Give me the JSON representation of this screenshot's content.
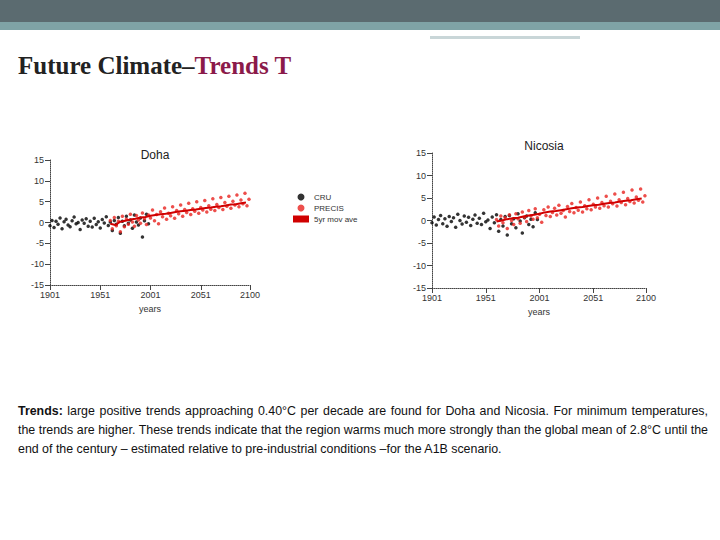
{
  "slide": {
    "title_parts": [
      "Future Climate–",
      "Trends T"
    ],
    "caption_lead": "Trends:",
    "caption": "large positive trends approaching 0.40°C per decade are found for Doha and Nicosia. For minimum temperatures, the trends are higher. These trends indicate that the region warms much more strongly than the global mean of 2.8°C until the end of the century – estimated relative to pre-industrial conditions –for the A1B scenario."
  },
  "chart_data": [
    {
      "type": "scatter",
      "title": "Doha",
      "x_label": "years",
      "xlim": [
        1901,
        2100
      ],
      "xticks": [
        1901,
        1951,
        2001,
        2051,
        2100
      ],
      "ylim": [
        -15,
        15
      ],
      "yticks": [
        -15,
        -10,
        -5,
        0,
        5,
        10,
        15
      ],
      "grid": false,
      "legend": "right",
      "series": [
        {
          "name": "CRU",
          "type": "scatter",
          "marker": "circle",
          "color": "#000000",
          "x": [
            1901,
            1903,
            1905,
            1907,
            1909,
            1911,
            1913,
            1915,
            1917,
            1919,
            1921,
            1923,
            1925,
            1927,
            1929,
            1931,
            1933,
            1935,
            1937,
            1939,
            1941,
            1943,
            1945,
            1947,
            1949,
            1951,
            1953,
            1955,
            1957,
            1959,
            1961,
            1963,
            1965,
            1967,
            1969,
            1971,
            1973,
            1975,
            1977,
            1979,
            1981,
            1983,
            1985,
            1987,
            1989,
            1991,
            1993,
            1995,
            1997,
            1999
          ],
          "values": [
            -0.8,
            0.5,
            -1.2,
            0.3,
            -0.4,
            1.1,
            -1.5,
            0.2,
            0.8,
            -0.6,
            -1.0,
            0.4,
            1.3,
            -0.3,
            0.0,
            -1.7,
            0.6,
            -0.2,
            0.9,
            -0.9,
            0.3,
            -1.1,
            1.0,
            -0.5,
            0.2,
            -1.3,
            0.7,
            -0.1,
            1.4,
            -0.7,
            0.1,
            -1.9,
            0.5,
            -0.4,
            1.2,
            -2.6,
            0.3,
            -0.8,
            1.5,
            -0.2,
            0.6,
            -1.4,
            1.8,
            0.1,
            -0.6,
            1.1,
            -3.5,
            0.4,
            2.0,
            -0.3
          ]
        },
        {
          "name": "PRECIS",
          "type": "scatter",
          "marker": "circle",
          "color": "#e8231f",
          "x": [
            1961,
            1963,
            1965,
            1967,
            1969,
            1971,
            1973,
            1975,
            1977,
            1979,
            1981,
            1983,
            1985,
            1987,
            1989,
            1991,
            1993,
            1995,
            1997,
            1999,
            2001,
            2003,
            2005,
            2007,
            2009,
            2011,
            2013,
            2015,
            2017,
            2019,
            2021,
            2023,
            2025,
            2027,
            2029,
            2031,
            2033,
            2035,
            2037,
            2039,
            2041,
            2043,
            2045,
            2047,
            2049,
            2051,
            2053,
            2055,
            2057,
            2059,
            2061,
            2063,
            2065,
            2067,
            2069,
            2071,
            2073,
            2075,
            2077,
            2079,
            2081,
            2083,
            2085,
            2087,
            2089,
            2091,
            2093,
            2095,
            2097,
            2099
          ],
          "values": [
            0.5,
            -1.5,
            1.2,
            -0.8,
            0.3,
            -2.2,
            1.5,
            -1.0,
            0.8,
            -0.4,
            2.0,
            0.1,
            -0.9,
            1.7,
            0.6,
            -0.2,
            2.3,
            0.9,
            -0.5,
            1.8,
            1.1,
            3.0,
            0.4,
            1.9,
            -0.3,
            2.6,
            1.4,
            3.5,
            0.8,
            2.2,
            1.6,
            3.8,
            1.0,
            2.9,
            2.1,
            4.2,
            1.5,
            3.1,
            2.4,
            4.6,
            1.9,
            3.3,
            2.7,
            5.0,
            2.2,
            3.6,
            3.0,
            5.3,
            2.5,
            4.0,
            3.2,
            5.7,
            2.9,
            4.3,
            3.6,
            6.0,
            3.1,
            4.8,
            3.9,
            6.3,
            3.4,
            5.1,
            4.2,
            6.6,
            3.8,
            5.4,
            4.5,
            7.0,
            4.0,
            5.6
          ]
        },
        {
          "name": "5yr mov ave",
          "type": "line",
          "line_style": "solid",
          "color": "#d00000",
          "x": [
            1961,
            1966,
            1971,
            1976,
            1981,
            1986,
            1991,
            1996,
            2001,
            2006,
            2011,
            2016,
            2021,
            2026,
            2031,
            2036,
            2041,
            2046,
            2051,
            2056,
            2061,
            2066,
            2071,
            2076,
            2081,
            2086,
            2091,
            2096
          ],
          "values": [
            -0.3,
            -0.6,
            0.2,
            0.4,
            0.7,
            0.9,
            1.2,
            1.3,
            1.6,
            1.8,
            2.0,
            2.1,
            2.3,
            2.5,
            2.7,
            2.8,
            3.0,
            3.1,
            3.3,
            3.5,
            3.6,
            3.8,
            3.9,
            4.1,
            4.3,
            4.4,
            4.6,
            4.8
          ]
        }
      ]
    },
    {
      "type": "scatter",
      "title": "Nicosia",
      "x_label": "years",
      "xlim": [
        1901,
        2100
      ],
      "xticks": [
        1901,
        1951,
        2001,
        2051,
        2100
      ],
      "ylim": [
        -15,
        15
      ],
      "yticks": [
        -15,
        -10,
        -5,
        0,
        5,
        10,
        15
      ],
      "grid": false,
      "series": [
        {
          "name": "CRU",
          "type": "scatter",
          "marker": "circle",
          "color": "#000000",
          "x": [
            1901,
            1903,
            1905,
            1907,
            1909,
            1911,
            1913,
            1915,
            1917,
            1919,
            1921,
            1923,
            1925,
            1927,
            1929,
            1931,
            1933,
            1935,
            1937,
            1939,
            1941,
            1943,
            1945,
            1947,
            1949,
            1951,
            1953,
            1955,
            1957,
            1959,
            1961,
            1963,
            1965,
            1967,
            1969,
            1971,
            1973,
            1975,
            1977,
            1979,
            1981,
            1983,
            1985,
            1987,
            1989,
            1991,
            1993,
            1995,
            1997,
            1999
          ],
          "values": [
            -0.5,
            0.8,
            -1.0,
            0.2,
            1.1,
            -0.7,
            0.4,
            -1.3,
            0.9,
            -0.2,
            0.6,
            -1.5,
            1.4,
            0.0,
            -0.8,
            1.0,
            -0.4,
            0.7,
            -1.1,
            0.3,
            1.2,
            -0.6,
            0.5,
            -0.9,
            1.6,
            -0.3,
            0.1,
            -1.8,
            0.8,
            -0.5,
            1.3,
            -2.4,
            0.2,
            -1.2,
            0.9,
            -3.2,
            1.1,
            -0.7,
            0.4,
            -1.6,
            1.5,
            -0.1,
            -2.8,
            0.6,
            1.0,
            -0.9,
            0.3,
            -1.4,
            1.7,
            0.2
          ]
        },
        {
          "name": "PRECIS",
          "type": "scatter",
          "marker": "circle",
          "color": "#e8231f",
          "x": [
            1961,
            1963,
            1965,
            1967,
            1969,
            1971,
            1973,
            1975,
            1977,
            1979,
            1981,
            1983,
            1985,
            1987,
            1989,
            1991,
            1993,
            1995,
            1997,
            1999,
            2001,
            2003,
            2005,
            2007,
            2009,
            2011,
            2013,
            2015,
            2017,
            2019,
            2021,
            2023,
            2025,
            2027,
            2029,
            2031,
            2033,
            2035,
            2037,
            2039,
            2041,
            2043,
            2045,
            2047,
            2049,
            2051,
            2053,
            2055,
            2057,
            2059,
            2061,
            2063,
            2065,
            2067,
            2069,
            2071,
            2073,
            2075,
            2077,
            2079,
            2081,
            2083,
            2085,
            2087,
            2089,
            2091,
            2093,
            2095,
            2097,
            2099
          ],
          "values": [
            0.2,
            -1.2,
            1.0,
            -0.5,
            0.6,
            -1.8,
            1.3,
            0.0,
            -0.9,
            1.5,
            0.4,
            -0.6,
            1.9,
            0.7,
            -0.2,
            2.2,
            1.0,
            0.3,
            2.6,
            0.6,
            1.4,
            -0.4,
            2.4,
            1.1,
            3.0,
            0.9,
            1.8,
            2.7,
            1.2,
            3.4,
            1.6,
            2.2,
            0.8,
            3.1,
            2.0,
            3.8,
            1.7,
            2.9,
            2.3,
            4.1,
            1.9,
            3.3,
            2.6,
            4.6,
            2.4,
            3.6,
            3.0,
            5.0,
            2.7,
            4.0,
            3.3,
            5.4,
            3.0,
            4.3,
            3.7,
            5.9,
            3.2,
            4.6,
            4.0,
            6.3,
            3.5,
            4.9,
            4.2,
            6.8,
            3.9,
            5.2,
            4.5,
            7.0,
            4.1,
            5.5
          ]
        },
        {
          "name": "5yr mov ave",
          "type": "line",
          "line_style": "solid",
          "color": "#d00000",
          "x": [
            1961,
            1966,
            1971,
            1976,
            1981,
            1986,
            1991,
            1996,
            2001,
            2006,
            2011,
            2016,
            2021,
            2026,
            2031,
            2036,
            2041,
            2046,
            2051,
            2056,
            2061,
            2066,
            2071,
            2076,
            2081,
            2086,
            2091,
            2096
          ],
          "values": [
            -0.2,
            0.0,
            0.3,
            0.5,
            0.6,
            0.9,
            1.1,
            1.3,
            1.5,
            1.8,
            2.0,
            2.1,
            2.3,
            2.5,
            2.7,
            2.9,
            3.0,
            3.2,
            3.4,
            3.5,
            3.7,
            3.9,
            4.0,
            4.2,
            4.4,
            4.5,
            4.7,
            4.9
          ]
        }
      ]
    }
  ]
}
